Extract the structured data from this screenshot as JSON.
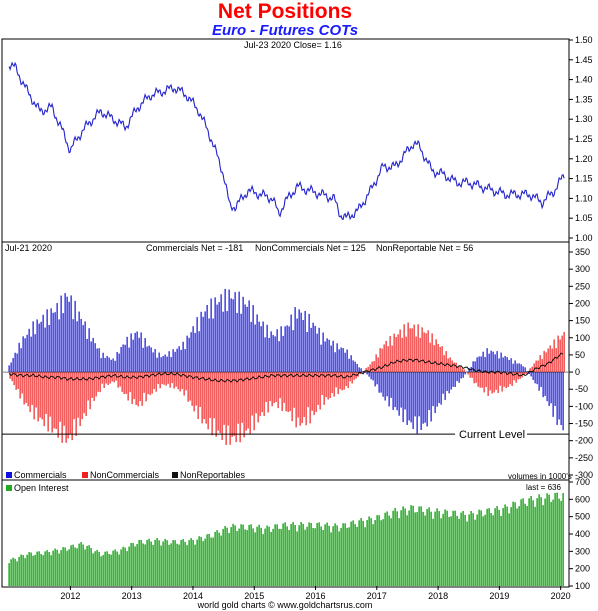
{
  "header": {
    "title": "Net Positions",
    "subtitle": "Euro - Futures COTs"
  },
  "footer": {
    "text": "world gold charts © www.goldchartsrus.com"
  },
  "colors": {
    "title": "#ff0000",
    "subtitle": "#1a1aff",
    "commercials": "#1010dd",
    "noncommercials": "#ee2222",
    "nonreportables": "#111111",
    "open_interest": "#22aa22",
    "price_line": "#2222cc"
  },
  "chart_data": [
    {
      "type": "line",
      "panel": "price",
      "annotation": "Jul-23  2020   Close= 1.16",
      "ylim": [
        1.0,
        1.5
      ],
      "yticks": [
        "1.50",
        "1.45",
        "1.40",
        "1.35",
        "1.30",
        "1.25",
        "1.20",
        "1.15",
        "1.10",
        "1.05",
        "1.00"
      ],
      "x": [
        2011.5,
        2011.6,
        2011.8,
        2012.0,
        2012.2,
        2012.4,
        2012.5,
        2012.6,
        2012.8,
        2013.0,
        2013.2,
        2013.4,
        2013.6,
        2013.8,
        2014.0,
        2014.2,
        2014.4,
        2014.6,
        2014.8,
        2015.0,
        2015.05,
        2015.1,
        2015.2,
        2015.4,
        2015.6,
        2015.8,
        2015.9,
        2016.0,
        2016.2,
        2016.4,
        2016.6,
        2016.8,
        2016.9,
        2017.0,
        2017.2,
        2017.4,
        2017.6,
        2017.8,
        2018.0,
        2018.1,
        2018.2,
        2018.4,
        2018.6,
        2018.8,
        2019.0,
        2019.2,
        2019.4,
        2019.6,
        2019.8,
        2020.0,
        2020.2,
        2020.4,
        2020.56
      ],
      "series": [
        {
          "values": [
            1.44,
            1.43,
            1.37,
            1.32,
            1.33,
            1.26,
            1.22,
            1.25,
            1.29,
            1.32,
            1.3,
            1.28,
            1.33,
            1.36,
            1.37,
            1.38,
            1.36,
            1.32,
            1.25,
            1.16,
            1.12,
            1.08,
            1.08,
            1.12,
            1.11,
            1.1,
            1.06,
            1.09,
            1.13,
            1.12,
            1.11,
            1.1,
            1.06,
            1.05,
            1.07,
            1.12,
            1.18,
            1.18,
            1.22,
            1.24,
            1.23,
            1.17,
            1.16,
            1.14,
            1.14,
            1.13,
            1.12,
            1.11,
            1.11,
            1.11,
            1.09,
            1.12,
            1.16
          ]
        }
      ]
    },
    {
      "type": "bar",
      "panel": "net_positions",
      "annotation_date": "Jul-21  2020",
      "annotation_comm": "Commercials Net = -181",
      "annotation_noncomm": "NonCommercials Net = 125",
      "annotation_nonrep": "NonReportable Net = 56",
      "reference_label": "Current Level",
      "reference_value": -181,
      "units_note": "volumes in 1000's",
      "ylim": [
        -300,
        350
      ],
      "yticks": [
        "350",
        "300",
        "250",
        "200",
        "150",
        "100",
        "50",
        "0",
        "-50",
        "-100",
        "-150",
        "-200",
        "-250",
        "-300"
      ],
      "x": [
        2011.5,
        2011.7,
        2011.9,
        2012.1,
        2012.3,
        2012.45,
        2012.6,
        2012.8,
        2013.0,
        2013.2,
        2013.4,
        2013.6,
        2013.8,
        2014.0,
        2014.2,
        2014.35,
        2014.5,
        2014.7,
        2014.9,
        2015.1,
        2015.2,
        2015.4,
        2015.6,
        2015.8,
        2016.0,
        2016.2,
        2016.4,
        2016.6,
        2016.8,
        2017.0,
        2017.2,
        2017.4,
        2017.6,
        2017.8,
        2018.0,
        2018.15,
        2018.3,
        2018.5,
        2018.7,
        2018.9,
        2019.1,
        2019.3,
        2019.5,
        2019.7,
        2019.9,
        2020.1,
        2020.3,
        2020.45,
        2020.55
      ],
      "series": [
        {
          "name": "Commercials",
          "values": [
            20,
            100,
            150,
            180,
            210,
            250,
            200,
            130,
            60,
            40,
            100,
            130,
            80,
            50,
            70,
            90,
            140,
            200,
            230,
            250,
            240,
            220,
            160,
            120,
            140,
            200,
            170,
            120,
            90,
            70,
            20,
            -20,
            -80,
            -120,
            -160,
            -180,
            -170,
            -110,
            -60,
            -20,
            40,
            70,
            60,
            40,
            20,
            -40,
            -100,
            -160,
            -181
          ]
        },
        {
          "name": "NonCommercials",
          "values": [
            -20,
            -90,
            -140,
            -170,
            -200,
            -220,
            -180,
            -110,
            -50,
            -30,
            -80,
            -110,
            -70,
            -40,
            -50,
            -70,
            -120,
            -170,
            -200,
            -220,
            -210,
            -190,
            -140,
            -100,
            -120,
            -170,
            -150,
            -100,
            -70,
            -50,
            -10,
            30,
            90,
            120,
            150,
            140,
            130,
            90,
            40,
            10,
            -40,
            -70,
            -60,
            -40,
            -10,
            40,
            80,
            110,
            125
          ]
        },
        {
          "name": "NonReportables",
          "values": [
            -5,
            -10,
            -10,
            -15,
            -15,
            -20,
            -20,
            -20,
            -15,
            -10,
            -15,
            -15,
            -10,
            -5,
            -5,
            -10,
            -15,
            -20,
            -25,
            -25,
            -25,
            -20,
            -15,
            -10,
            -10,
            -10,
            -10,
            -10,
            -10,
            -15,
            -5,
            5,
            15,
            30,
            35,
            35,
            30,
            25,
            20,
            15,
            5,
            0,
            0,
            -5,
            -10,
            10,
            25,
            45,
            56
          ]
        }
      ],
      "legend": [
        "Commercials",
        "NonCommercials",
        "NonReportables"
      ]
    },
    {
      "type": "bar",
      "panel": "open_interest",
      "legend": "Open Interest",
      "last_label": "last = 636",
      "ylim": [
        100,
        700
      ],
      "yticks": [
        "700",
        "600",
        "500",
        "400",
        "300",
        "200",
        "100"
      ],
      "x": [
        2011.5,
        2011.8,
        2012.1,
        2012.4,
        2012.7,
        2013.0,
        2013.3,
        2013.6,
        2013.9,
        2014.2,
        2014.5,
        2014.8,
        2015.1,
        2015.4,
        2015.7,
        2016.0,
        2016.3,
        2016.6,
        2016.9,
        2017.2,
        2017.5,
        2017.8,
        2018.1,
        2018.4,
        2018.7,
        2019.0,
        2019.3,
        2019.6,
        2019.9,
        2020.2,
        2020.55
      ],
      "series": [
        {
          "name": "Open Interest",
          "values": [
            250,
            290,
            300,
            320,
            350,
            290,
            310,
            360,
            370,
            360,
            370,
            400,
            450,
            450,
            440,
            460,
            460,
            460,
            450,
            480,
            500,
            540,
            560,
            540,
            530,
            520,
            540,
            560,
            600,
            620,
            636
          ]
        }
      ]
    }
  ],
  "xaxis": {
    "range": [
      2011.4,
      2020.62
    ],
    "tick_labels": [
      "2012",
      "2013",
      "2014",
      "2015",
      "2016",
      "2017",
      "2018",
      "2019",
      "2020"
    ]
  }
}
